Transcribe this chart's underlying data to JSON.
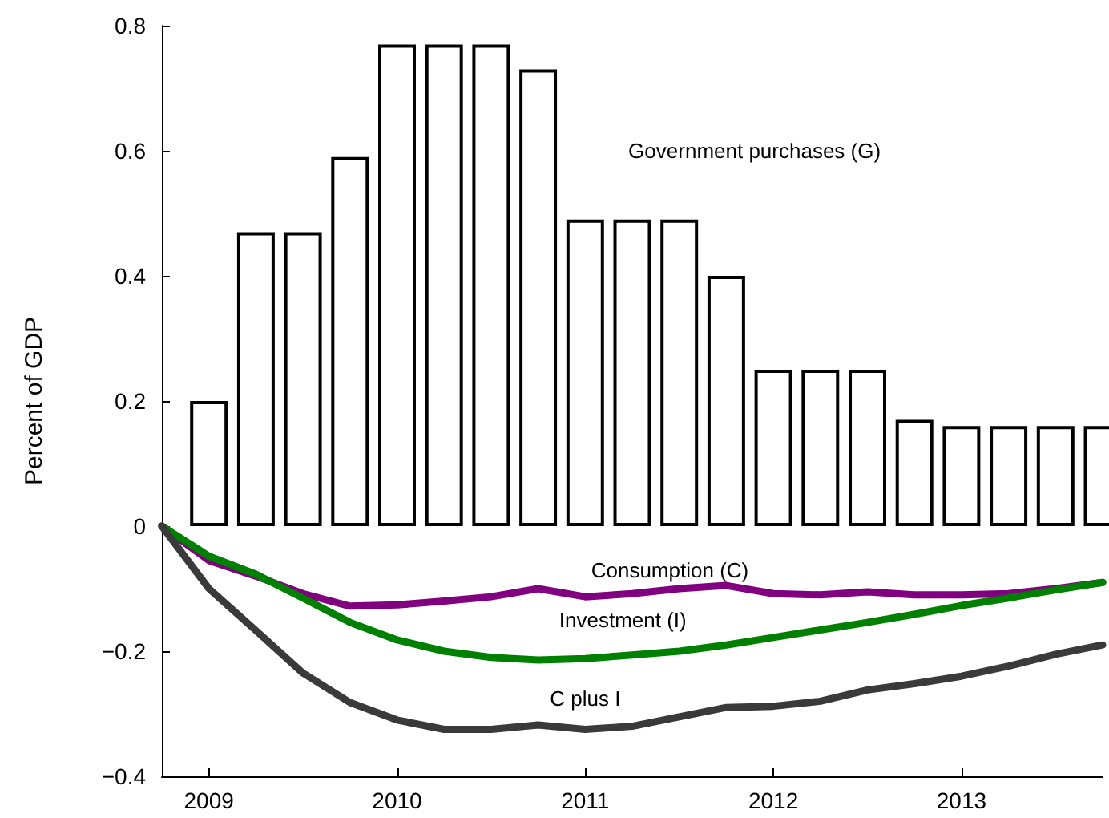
{
  "chart_data": {
    "type": "bar",
    "ylabel": "Percent of GDP",
    "xlim": [
      2008.75,
      2013.75
    ],
    "xticks": [
      2009,
      2010,
      2011,
      2012,
      2013
    ],
    "ylim": [
      -0.4,
      0.8
    ],
    "yticks": [
      -0.4,
      -0.2,
      0,
      0.2,
      0.4,
      0.6,
      0.8
    ],
    "grid": false,
    "legend": false,
    "line_style": "solid",
    "marker": "none",
    "series": [
      {
        "name": "Government purchases (G)",
        "color": "#ffffff",
        "x": [
          2009,
          2009.25,
          2009.5,
          2009.75,
          2010,
          2010.25,
          2010.5,
          2010.75,
          2011,
          2011.25,
          2011.5,
          2011.75,
          2012,
          2012.25,
          2012.5,
          2012.75,
          2013,
          2013.25,
          2013.5,
          2013.75
        ],
        "values": [
          0.2,
          0.47,
          0.47,
          0.59,
          0.77,
          0.77,
          0.77,
          0.73,
          0.49,
          0.49,
          0.49,
          0.4,
          0.25,
          0.25,
          0.25,
          0.17,
          0.16,
          0.16,
          0.16,
          0.16
        ]
      },
      {
        "name": "Consumption (C)",
        "type": "line",
        "color": "#800080",
        "x": [
          2008.75,
          2009,
          2009.25,
          2009.5,
          2009.75,
          2010,
          2010.25,
          2010.5,
          2010.75,
          2011,
          2011.25,
          2011.5,
          2011.75,
          2012,
          2012.25,
          2012.5,
          2012.75,
          2013,
          2013.25,
          2013.5,
          2013.75
        ],
        "values": [
          0,
          -0.055,
          -0.08,
          -0.108,
          -0.128,
          -0.126,
          -0.12,
          -0.113,
          -0.1,
          -0.113,
          -0.108,
          -0.1,
          -0.095,
          -0.108,
          -0.11,
          -0.105,
          -0.11,
          -0.11,
          -0.108,
          -0.1,
          -0.09
        ]
      },
      {
        "name": "Investment (I)",
        "type": "line",
        "color": "#008000",
        "x": [
          2008.75,
          2009,
          2009.25,
          2009.5,
          2009.75,
          2010,
          2010.25,
          2010.5,
          2010.75,
          2011,
          2011.25,
          2011.5,
          2011.75,
          2012,
          2012.25,
          2012.5,
          2012.75,
          2013,
          2013.25,
          2013.5,
          2013.75
        ],
        "values": [
          0,
          -0.048,
          -0.077,
          -0.115,
          -0.154,
          -0.182,
          -0.2,
          -0.21,
          -0.214,
          -0.212,
          -0.206,
          -0.2,
          -0.19,
          -0.178,
          -0.166,
          -0.154,
          -0.141,
          -0.127,
          -0.115,
          -0.102,
          -0.09
        ]
      },
      {
        "name": "C plus I",
        "type": "line",
        "color": "#3a3a3a",
        "x": [
          2008.75,
          2009,
          2009.25,
          2009.5,
          2009.75,
          2010,
          2010.25,
          2010.5,
          2010.75,
          2011,
          2011.25,
          2011.5,
          2011.75,
          2012,
          2012.25,
          2012.5,
          2012.75,
          2013,
          2013.25,
          2013.5,
          2013.75
        ],
        "values": [
          0,
          -0.1,
          -0.167,
          -0.235,
          -0.282,
          -0.31,
          -0.325,
          -0.325,
          -0.318,
          -0.325,
          -0.32,
          -0.305,
          -0.29,
          -0.288,
          -0.28,
          -0.262,
          -0.252,
          -0.24,
          -0.224,
          -0.205,
          -0.19
        ]
      }
    ]
  }
}
